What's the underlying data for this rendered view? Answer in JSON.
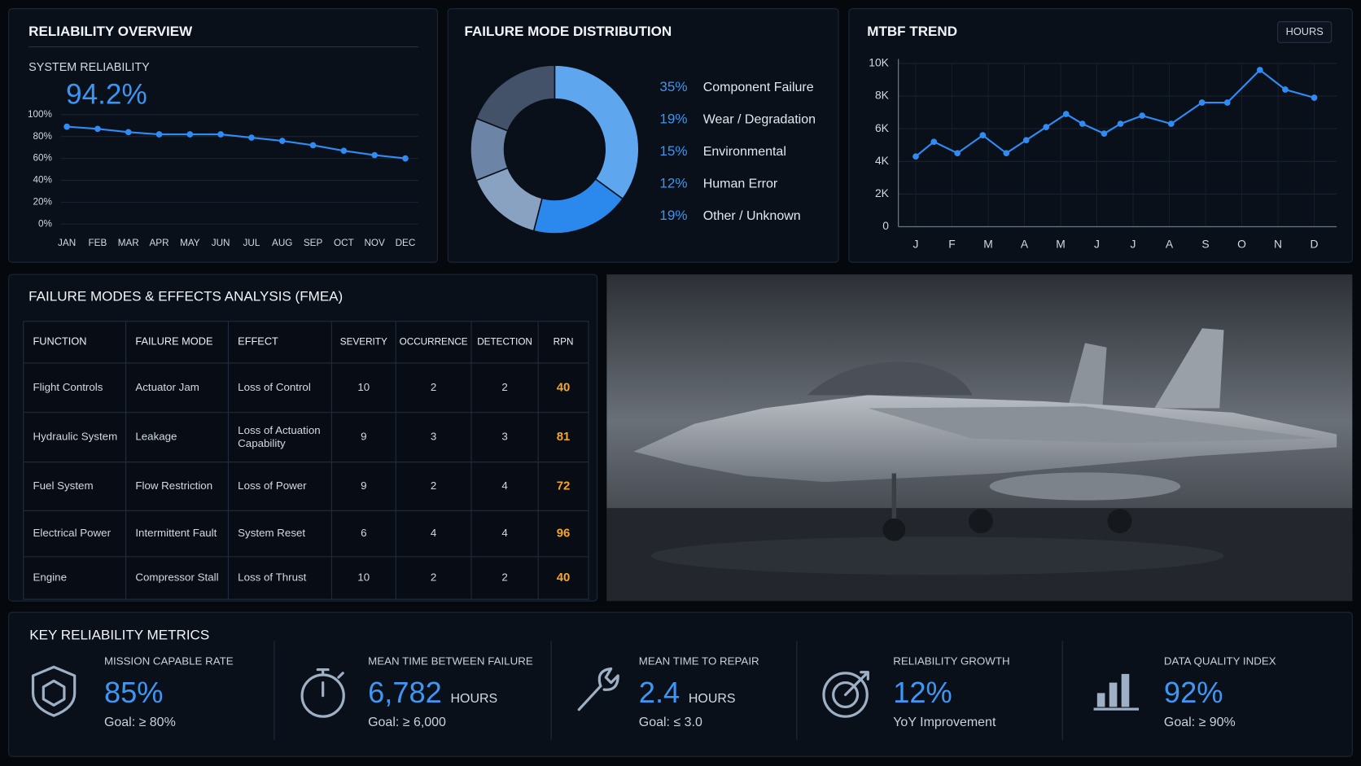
{
  "chart_data": [
    {
      "type": "line",
      "title": "RELIABILITY OVERVIEW",
      "subtitle": "SYSTEM RELIABILITY",
      "annotation": "94.2%",
      "categories": [
        "JAN",
        "FEB",
        "MAR",
        "APR",
        "MAY",
        "JUN",
        "JUL",
        "AUG",
        "SEP",
        "OCT",
        "NOV",
        "DEC"
      ],
      "values": [
        89,
        87,
        84,
        82,
        82,
        82,
        79,
        76,
        72,
        67,
        63,
        60
      ],
      "color": "#2f8cf5",
      "ylim": [
        0,
        100
      ],
      "yticks": [
        {
          "value": 0,
          "label": "0%"
        },
        {
          "value": 20,
          "label": "20%"
        },
        {
          "value": 40,
          "label": "40%"
        },
        {
          "value": 60,
          "label": "60%"
        },
        {
          "value": 80,
          "label": "80%"
        },
        {
          "value": 100,
          "label": "100%"
        }
      ],
      "grid": true
    },
    {
      "type": "donut",
      "title": "FAILURE MODE DISTRIBUTION",
      "categories": [
        "Component Failure",
        "Wear / Degradation",
        "Environmental",
        "Human Error",
        "Other / Unknown"
      ],
      "values": [
        35,
        19,
        15,
        12,
        19
      ],
      "value_labels": [
        "35%",
        "19%",
        "15%",
        "12%",
        "19%"
      ],
      "colors": [
        "#5ea6ee",
        "#2b89ee",
        "#8aa2c2",
        "#6c84a6",
        "#435269"
      ]
    },
    {
      "type": "line",
      "title": "MTBF TREND",
      "unit_button": "HOURS",
      "x": [
        1.0,
        1.5,
        2.15,
        2.85,
        3.5,
        4.05,
        4.6,
        5.15,
        5.6,
        6.2,
        6.65,
        7.25,
        8.05,
        8.9,
        9.6,
        10.5,
        11.2,
        12.0
      ],
      "values": [
        4300,
        5200,
        4500,
        5600,
        4500,
        5300,
        6100,
        6900,
        6300,
        5700,
        6300,
        6800,
        6300,
        7600,
        7600,
        9600,
        8400,
        7900
      ],
      "color": "#2f8cf5",
      "xlim": [
        0.52,
        12.62
      ],
      "xticks": [
        {
          "value": 1,
          "label": "J"
        },
        {
          "value": 2,
          "label": "F"
        },
        {
          "value": 3,
          "label": "M"
        },
        {
          "value": 4,
          "label": "A"
        },
        {
          "value": 5,
          "label": "M"
        },
        {
          "value": 6,
          "label": "J"
        },
        {
          "value": 7,
          "label": "J"
        },
        {
          "value": 8,
          "label": "A"
        },
        {
          "value": 9,
          "label": "S"
        },
        {
          "value": 10,
          "label": "O"
        },
        {
          "value": 11,
          "label": "N"
        },
        {
          "value": 12,
          "label": "D"
        }
      ],
      "ylim": [
        0,
        10000
      ],
      "yticks": [
        0,
        {
          "value": 2000,
          "label": "2K"
        },
        {
          "value": 4000,
          "label": "4K"
        },
        {
          "value": 6000,
          "label": "6K"
        },
        {
          "value": 8000,
          "label": "8K"
        },
        {
          "value": 10000,
          "label": "10K"
        }
      ],
      "grid": true
    }
  ],
  "fmea": {
    "title": "FAILURE MODES & EFFECTS ANALYSIS (FMEA)",
    "columns": [
      "FUNCTION",
      "FAILURE MODE",
      "EFFECT",
      "SEVERITY",
      "OCCURRENCE",
      "DETECTION",
      "RPN"
    ],
    "rows": [
      [
        "Flight Controls",
        "Actuator Jam",
        "Loss of Control",
        "10",
        "2",
        "2",
        "40"
      ],
      [
        "Hydraulic System",
        "Leakage",
        "Loss of Actuation Capability",
        "9",
        "3",
        "3",
        "81"
      ],
      [
        "Fuel System",
        "Flow Restriction",
        "Loss of Power",
        "9",
        "2",
        "4",
        "72"
      ],
      [
        "Electrical Power",
        "Intermittent Fault",
        "System Reset",
        "6",
        "4",
        "4",
        "96"
      ],
      [
        "Engine",
        "Compressor Stall",
        "Loss of Thrust",
        "10",
        "2",
        "2",
        "40"
      ]
    ]
  },
  "metrics": {
    "title": "KEY RELIABILITY METRICS",
    "items": [
      {
        "label": "MISSION CAPABLE RATE",
        "value": "85%",
        "note": "Goal: ≥ 80%"
      },
      {
        "label": "MEAN TIME BETWEEN FAILURE",
        "value": "6,782",
        "unit": "HOURS",
        "note": "Goal: ≥ 6,000"
      },
      {
        "label": "MEAN TIME TO REPAIR",
        "value": "2.4",
        "unit": "HOURS",
        "note": "Goal: ≤ 3.0"
      },
      {
        "label": "RELIABILITY GROWTH",
        "value": "12%",
        "note": "YoY Improvement"
      },
      {
        "label": "DATA QUALITY INDEX",
        "value": "92%",
        "note": "Goal: ≥ 90%"
      }
    ]
  }
}
